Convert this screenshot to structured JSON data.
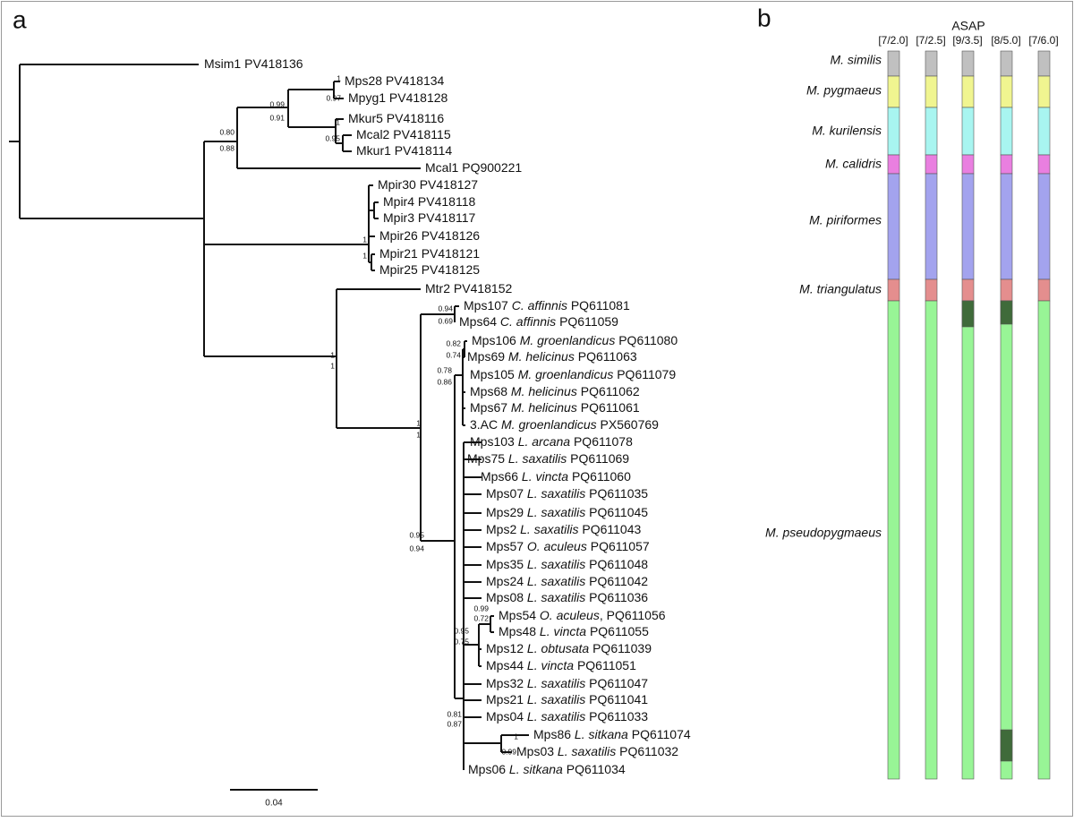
{
  "panel_a": {
    "label": "a",
    "scale": "0.04",
    "tips": [
      {
        "name": "Msim1",
        "accession": "PV418136"
      },
      {
        "name": "Mps28",
        "accession": "PV418134"
      },
      {
        "name": "Mpyg1",
        "accession": "PV418128"
      },
      {
        "name": "Mkur5",
        "accession": "PV418116"
      },
      {
        "name": "Mcal2",
        "accession": "PV418115"
      },
      {
        "name": "Mkur1",
        "accession": "PV418114"
      },
      {
        "name": "Mcal1",
        "accession": "PQ900221"
      },
      {
        "name": "Mpir30",
        "accession": "PV418127"
      },
      {
        "name": "Mpir4",
        "accession": "PV418118"
      },
      {
        "name": "Mpir3",
        "accession": "PV418117"
      },
      {
        "name": "Mpir26",
        "accession": "PV418126"
      },
      {
        "name": "Mpir21",
        "accession": "PV418121"
      },
      {
        "name": "Mpir25",
        "accession": "PV418125"
      },
      {
        "name": "Mtr2",
        "accession": "PV418152"
      },
      {
        "name": "Mps107",
        "species": "C. affinnis",
        "accession": "PQ611081"
      },
      {
        "name": "Mps64",
        "species": "C. affinnis",
        "accession": "PQ611059"
      },
      {
        "name": "Mps106",
        "species": "M. groenlandicus",
        "accession": "PQ611080"
      },
      {
        "name": "Mps69",
        "species": "M. helicinus",
        "accession": "PQ611063"
      },
      {
        "name": "Mps105",
        "species": "M. groenlandicus",
        "accession": "PQ611079"
      },
      {
        "name": "Mps68",
        "species": "M. helicinus",
        "accession": "PQ611062"
      },
      {
        "name": "Mps67",
        "species": "M. helicinus",
        "accession": "PQ611061"
      },
      {
        "name": "3.AC",
        "species": "M. groenlandicus",
        "accession": "PX560769"
      },
      {
        "name": "Mps103",
        "species": "L. arcana",
        "accession": "PQ611078"
      },
      {
        "name": "Mps75",
        "species": "L. saxatilis",
        "accession": "PQ611069"
      },
      {
        "name": "Mps66",
        "species": "L. vincta",
        "accession": "PQ611060"
      },
      {
        "name": "Mps07",
        "species": "L. saxatilis",
        "accession": "PQ611035"
      },
      {
        "name": "Mps29",
        "species": "L. saxatilis",
        "accession": "PQ611045"
      },
      {
        "name": "Mps2",
        "species": "L. saxatilis",
        "accession": "PQ611043"
      },
      {
        "name": "Mps57",
        "species": "O. aculeus",
        "accession": "PQ611057"
      },
      {
        "name": "Mps35",
        "species": "L. saxatilis",
        "accession": "PQ611048"
      },
      {
        "name": "Mps24",
        "species": "L. saxatilis",
        "accession": "PQ611042"
      },
      {
        "name": "Mps08",
        "species": "L. saxatilis",
        "accession": "PQ611036"
      },
      {
        "name": "Mps54",
        "species": "O. aculeus",
        "accession": ", PQ611056"
      },
      {
        "name": "Mps48",
        "species": "L. vincta",
        "accession": "PQ611055"
      },
      {
        "name": "Mps12",
        "species": "L. obtusata",
        "accession": "PQ611039"
      },
      {
        "name": "Mps44",
        "species": "L. vincta",
        "accession": "PQ611051"
      },
      {
        "name": "Mps32",
        "species": "L. saxatilis",
        "accession": "PQ611047"
      },
      {
        "name": "Mps21",
        "species": "L. saxatilis",
        "accession": "PQ611041"
      },
      {
        "name": "Mps04",
        "species": "L. saxatilis",
        "accession": "PQ611033"
      },
      {
        "name": "Mps86",
        "species": "L. sitkana",
        "accession": "PQ611074"
      },
      {
        "name": "Mps03",
        "species": "L. saxatilis",
        "accession": "PQ611032"
      },
      {
        "name": "Mps06",
        "species": "L. sitkana",
        "accession": "PQ611034"
      }
    ],
    "supports": [
      "1",
      "0.97",
      "0.99",
      "0.91",
      "1",
      "0.95",
      "0.80",
      "0.88",
      "1",
      "1",
      "1",
      "1",
      "0.94",
      "0.69",
      "0.82",
      "0.74",
      "0.78",
      "0.86",
      "1",
      "1",
      "0.95",
      "0.94",
      "0.99",
      "0.72",
      "0.95",
      "0.75",
      "0.81",
      "0.87",
      "1",
      "0.99"
    ]
  },
  "panel_b": {
    "label": "b",
    "title": "ASAP",
    "columns": [
      "[7/2.0]",
      "[7/2.5]",
      "[9/3.5]",
      "[8/5.0]",
      "[7/6.0]"
    ],
    "species": [
      "M. similis",
      "M. pygmaeus",
      "M. kurilensis",
      "M. calidris",
      "M. piriformes",
      "M. triangulatus",
      "M. pseudopygmaeus"
    ]
  }
}
